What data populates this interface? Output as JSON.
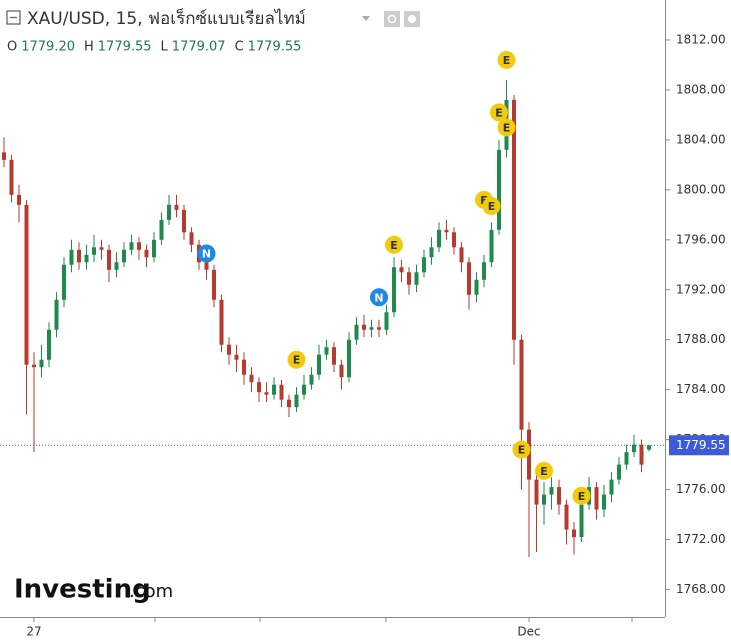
{
  "chart_data": {
    "type": "candlestick",
    "title": "XAU/USD, 15, ฟอเร็กซ์แบบเรียลไทม์",
    "ohlc_line": [
      {
        "key": "O",
        "value": "1779.20"
      },
      {
        "key": "H",
        "value": "1779.55"
      },
      {
        "key": "L",
        "value": "1779.07"
      },
      {
        "key": "C",
        "value": "1779.55"
      }
    ],
    "logo": {
      "name": "Investing",
      "suffix": ".com"
    },
    "up_color": "#1e8a4c",
    "down_color": "#b83a2e",
    "categories": [
      null,
      null,
      null,
      null,
      "27",
      null,
      null,
      null,
      null,
      null,
      null,
      null,
      null,
      null,
      null,
      null,
      null,
      null,
      null,
      null,
      null,
      null,
      null,
      null,
      null,
      null,
      null,
      null,
      null,
      null,
      null,
      null,
      null,
      null,
      null,
      null,
      null,
      null,
      null,
      null,
      null,
      null,
      null,
      null,
      null,
      null,
      null,
      null,
      null,
      null,
      null,
      null,
      null,
      null,
      null,
      null,
      null,
      null,
      null,
      null,
      null,
      null,
      null,
      null,
      null,
      null,
      null,
      null,
      null,
      null,
      "Dec",
      null,
      null,
      null,
      null,
      null,
      null,
      null,
      null,
      null,
      null,
      null,
      null,
      null,
      null,
      null,
      null
    ],
    "open": [
      1803.0,
      1802.4,
      1799.6,
      1798.8,
      1786.0,
      1785.8,
      1786.4,
      1788.8,
      1791.2,
      1794.0,
      1795.2,
      1794.2,
      1794.8,
      1795.4,
      1795.2,
      1793.6,
      1794.2,
      1795.2,
      1795.8,
      1795.2,
      1794.6,
      1796.0,
      1797.6,
      1798.8,
      1798.4,
      1796.6,
      1795.6,
      1794.2,
      1793.6,
      1791.2,
      1787.6,
      1786.8,
      1786.4,
      1785.2,
      1784.6,
      1783.8,
      1783.6,
      1784.4,
      1783.2,
      1782.6,
      1783.6,
      1784.4,
      1785.2,
      1786.8,
      1787.4,
      1786.0,
      1785.0,
      1788.0,
      1789.2,
      1788.8,
      1789.0,
      1788.8,
      1790.2,
      1793.8,
      1793.4,
      1792.4,
      1793.4,
      1794.6,
      1795.4,
      1796.8,
      1796.6,
      1795.4,
      1794.2,
      1791.6,
      1792.8,
      1794.2,
      1796.8,
      1803.2,
      1807.2,
      1788.0,
      1780.8,
      1776.8,
      1774.8,
      1775.6,
      1776.2,
      1774.8,
      1772.8,
      1772.2,
      1774.8,
      1776.2,
      1774.4,
      1775.6,
      1776.8,
      1778.0,
      1779.0,
      1779.6,
      1779.2
    ],
    "high": [
      1804.2,
      1802.8,
      1800.4,
      1799.2,
      1787.0,
      1787.6,
      1789.4,
      1791.8,
      1794.6,
      1796.0,
      1795.8,
      1795.6,
      1796.4,
      1796.0,
      1795.6,
      1795.0,
      1795.8,
      1796.4,
      1796.2,
      1795.6,
      1796.6,
      1798.2,
      1799.6,
      1799.6,
      1798.8,
      1797.0,
      1796.0,
      1794.8,
      1794.0,
      1791.6,
      1788.2,
      1787.6,
      1787.0,
      1785.8,
      1785.0,
      1784.6,
      1785.0,
      1784.8,
      1783.6,
      1784.2,
      1785.2,
      1785.8,
      1787.6,
      1788.0,
      1787.8,
      1786.4,
      1788.6,
      1789.8,
      1790.0,
      1789.6,
      1789.6,
      1790.8,
      1794.6,
      1794.4,
      1793.8,
      1794.0,
      1795.2,
      1796.2,
      1797.4,
      1797.6,
      1797.0,
      1795.8,
      1794.6,
      1793.4,
      1794.8,
      1797.4,
      1804.0,
      1808.8,
      1807.6,
      1788.4,
      1781.4,
      1777.6,
      1776.6,
      1777.0,
      1776.8,
      1775.2,
      1773.4,
      1775.4,
      1777.0,
      1776.6,
      1776.4,
      1777.4,
      1778.6,
      1779.6,
      1780.4,
      1780.0,
      1779.55
    ],
    "low": [
      1801.8,
      1799.0,
      1797.4,
      1782.0,
      1779.0,
      1785.0,
      1785.8,
      1788.2,
      1790.6,
      1793.4,
      1793.6,
      1793.6,
      1794.2,
      1794.4,
      1792.6,
      1793.0,
      1793.8,
      1794.8,
      1794.4,
      1793.8,
      1794.2,
      1795.6,
      1797.2,
      1797.8,
      1796.0,
      1795.0,
      1793.6,
      1792.8,
      1790.6,
      1787.0,
      1786.0,
      1785.4,
      1784.4,
      1783.8,
      1783.0,
      1783.0,
      1783.2,
      1782.6,
      1781.8,
      1782.2,
      1783.2,
      1784.0,
      1784.8,
      1786.4,
      1785.4,
      1784.0,
      1784.6,
      1787.6,
      1788.2,
      1788.2,
      1788.2,
      1788.4,
      1789.8,
      1792.6,
      1791.6,
      1791.8,
      1793.0,
      1794.0,
      1795.0,
      1796.0,
      1794.8,
      1793.4,
      1790.4,
      1791.0,
      1792.2,
      1793.8,
      1796.4,
      1802.6,
      1786.0,
      1776.0,
      1770.6,
      1771.0,
      1773.2,
      1774.4,
      1774.0,
      1771.6,
      1770.8,
      1771.8,
      1774.4,
      1773.6,
      1773.8,
      1775.0,
      1776.4,
      1777.6,
      1778.6,
      1777.4,
      1779.07
    ],
    "close": [
      1802.4,
      1799.6,
      1798.8,
      1786.0,
      1785.8,
      1786.4,
      1788.8,
      1791.2,
      1794.0,
      1795.2,
      1794.2,
      1794.8,
      1795.4,
      1795.2,
      1793.6,
      1794.2,
      1795.2,
      1795.8,
      1795.2,
      1794.6,
      1796.0,
      1797.6,
      1798.8,
      1798.4,
      1796.6,
      1795.6,
      1794.2,
      1793.6,
      1791.2,
      1787.6,
      1786.8,
      1786.4,
      1785.2,
      1784.6,
      1783.8,
      1783.6,
      1784.4,
      1783.2,
      1782.6,
      1783.6,
      1784.4,
      1785.2,
      1786.8,
      1787.4,
      1786.0,
      1785.0,
      1788.0,
      1789.2,
      1788.8,
      1789.0,
      1788.8,
      1790.2,
      1793.8,
      1793.4,
      1792.4,
      1793.4,
      1794.6,
      1795.4,
      1796.8,
      1796.6,
      1795.4,
      1794.2,
      1791.6,
      1792.8,
      1794.2,
      1796.8,
      1803.2,
      1807.2,
      1788.0,
      1780.8,
      1776.8,
      1774.8,
      1775.6,
      1776.2,
      1774.8,
      1772.8,
      1772.2,
      1774.8,
      1776.2,
      1774.4,
      1775.6,
      1776.8,
      1778.0,
      1779.0,
      1779.6,
      1778.0,
      1779.55
    ],
    "ylim": [
      1765.8,
      1815.2
    ],
    "yticks": [
      {
        "value": 1768,
        "label": "1768.00"
      },
      {
        "value": 1772,
        "label": "1772.00"
      },
      {
        "value": 1776,
        "label": "1776.00"
      },
      {
        "value": 1780,
        "label": "1780.00"
      },
      {
        "value": 1784,
        "label": "1784.00"
      },
      {
        "value": 1788,
        "label": "1788.00"
      },
      {
        "value": 1792,
        "label": "1792.00"
      },
      {
        "value": 1796,
        "label": "1796.00"
      },
      {
        "value": 1800,
        "label": "1800.00"
      },
      {
        "value": 1804,
        "label": "1804.00"
      },
      {
        "value": 1808,
        "label": "1808.00"
      },
      {
        "value": 1812,
        "label": "1812.00"
      }
    ],
    "last_price": 1779.55,
    "last_price_color": "#3d5bd9",
    "events": [
      {
        "label": "E",
        "index": 67,
        "y": 1810.4,
        "color": "#f2cc0c"
      },
      {
        "label": "E",
        "index": 66,
        "y": 1806.2,
        "color": "#f2cc0c"
      },
      {
        "label": "E",
        "index": 67,
        "y": 1805.0,
        "color": "#f2cc0c"
      },
      {
        "label": "E",
        "index": 64,
        "y": 1799.2,
        "color": "#f2cc0c"
      },
      {
        "label": "E",
        "index": 65,
        "y": 1798.7,
        "color": "#f2cc0c"
      },
      {
        "label": "E",
        "index": 52,
        "y": 1795.6,
        "color": "#f2cc0c"
      },
      {
        "label": "E",
        "index": 39,
        "y": 1786.4,
        "color": "#f2cc0c"
      },
      {
        "label": "E",
        "index": 69,
        "y": 1779.2,
        "color": "#f2cc0c"
      },
      {
        "label": "E",
        "index": 72,
        "y": 1777.5,
        "color": "#f2cc0c"
      },
      {
        "label": "E",
        "index": 77,
        "y": 1775.5,
        "color": "#f2cc0c"
      },
      {
        "label": "N",
        "index": 27,
        "y": 1794.9,
        "color": "#1e88e5"
      },
      {
        "label": "N",
        "index": 50,
        "y": 1791.4,
        "color": "#1e88e5"
      }
    ]
  }
}
